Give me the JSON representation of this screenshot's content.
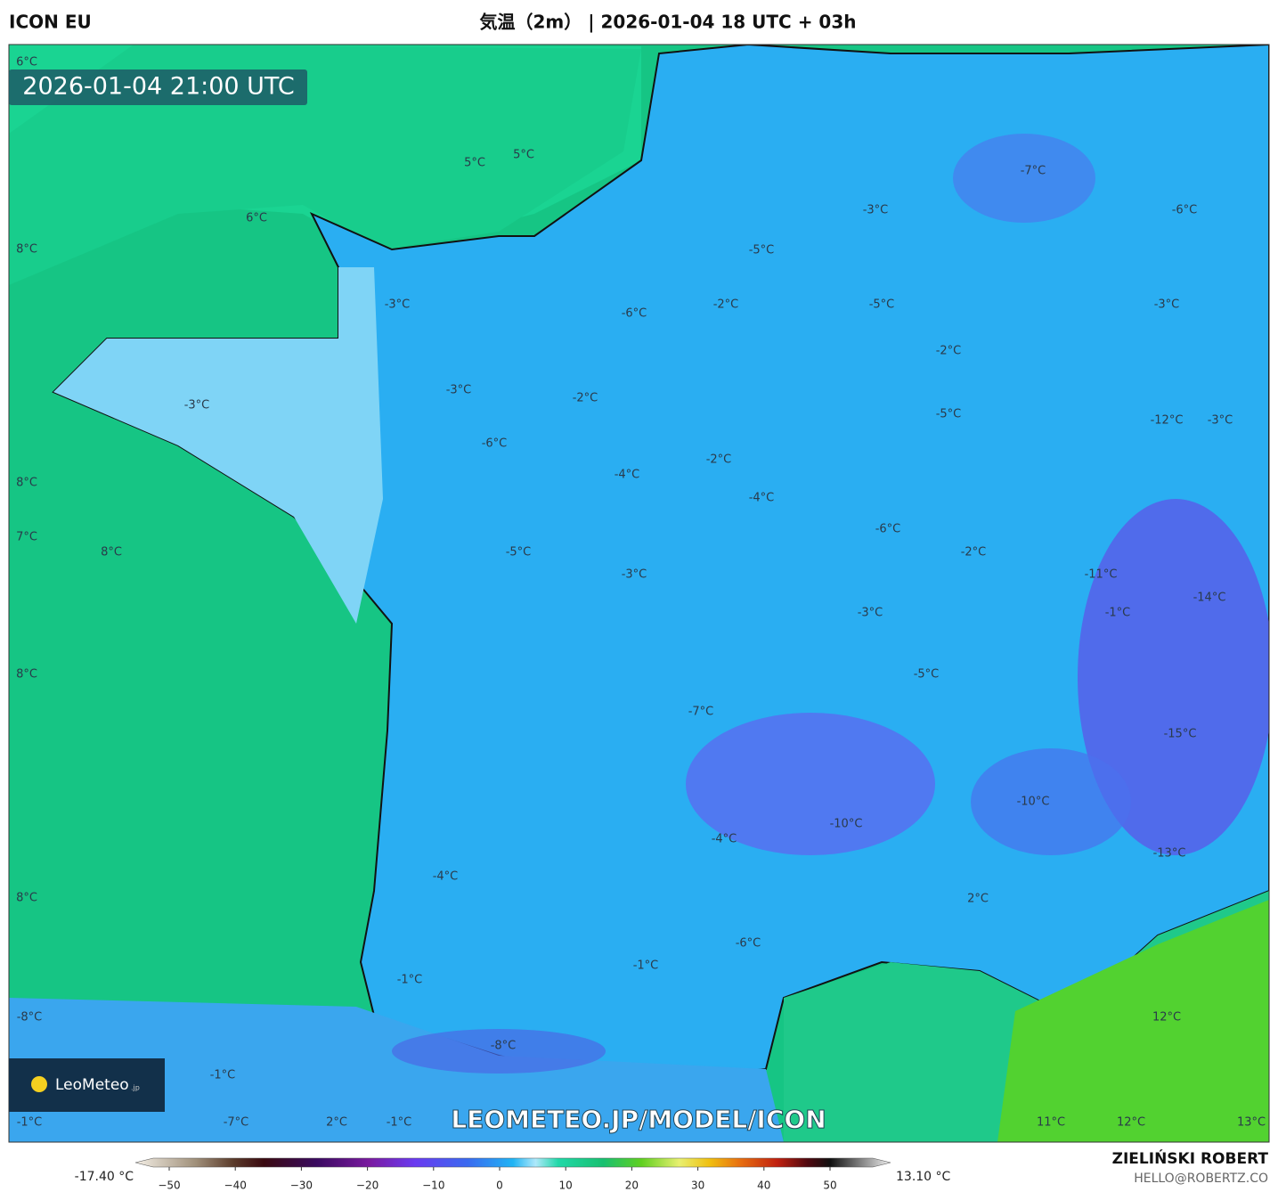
{
  "header": {
    "model": "ICON EU",
    "title": "気温（2m） | 2026-01-04 18 UTC + 03h"
  },
  "map": {
    "timestamp": "2026-01-04 21:00 UTC",
    "watermark": "LEOMETEO.JP/MODEL/ICON",
    "labels": [
      "6°C",
      "5°C",
      "5°C",
      "6°C",
      "8°C",
      "-7°C",
      "-3°C",
      "-6°C",
      "-5°C",
      "-3°C",
      "-6°C",
      "-2°C",
      "-5°C",
      "-3°C",
      "-2°C",
      "-3°C",
      "-2°C",
      "-3°C",
      "-5°C",
      "-12°C",
      "-3°C",
      "-6°C",
      "-2°C",
      "-4°C",
      "8°C",
      "-4°C",
      "7°C",
      "8°C",
      "-5°C",
      "-6°C",
      "-2°C",
      "-11°C",
      "-3°C",
      "-14°C",
      "-3°C",
      "-1°C",
      "-5°C",
      "8°C",
      "-7°C",
      "-15°C",
      "-10°C",
      "-10°C",
      "-4°C",
      "-13°C",
      "-4°C",
      "8°C",
      "2°C",
      "-6°C",
      "-1°C",
      "-1°C",
      "-8°C",
      "12°C",
      "-8°C",
      "-1°C",
      "-1°C",
      "-7°C",
      "2°C",
      "-1°C",
      "11°C",
      "12°C",
      "13°C"
    ]
  },
  "logo": {
    "name": "LeoMeteo",
    "suffix": ".jp"
  },
  "colorbar": {
    "min_label": "-17.40 °C",
    "max_label": "13.10 °C",
    "ticks": [
      {
        "value": -50,
        "label": "−50"
      },
      {
        "value": -40,
        "label": "−40"
      },
      {
        "value": -30,
        "label": "−30"
      },
      {
        "value": -20,
        "label": "−20"
      },
      {
        "value": -10,
        "label": "−10"
      },
      0,
      10,
      20,
      30,
      40,
      50
    ]
  },
  "credit": {
    "author": "ZIELIŃSKI ROBERT",
    "email": "HELLO@ROBERTZ.CO"
  }
}
